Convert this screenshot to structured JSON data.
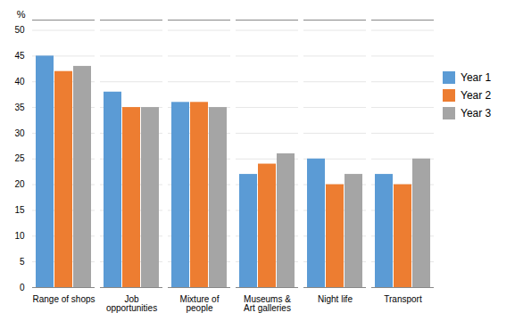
{
  "chart_data": {
    "type": "bar",
    "categories": [
      "Range of shops",
      "Job\nopportunities",
      "Mixture of\npeople",
      "Museums &\nArt galleries",
      "Night life",
      "Transport"
    ],
    "series": [
      {
        "name": "Year 1",
        "color": "#5B9BD5",
        "values": [
          45,
          38,
          36,
          22,
          25,
          22
        ]
      },
      {
        "name": "Year 2",
        "color": "#ED7D31",
        "values": [
          42,
          35,
          36,
          24,
          20,
          20
        ]
      },
      {
        "name": "Year 3",
        "color": "#A5A5A5",
        "values": [
          43,
          35,
          35,
          26,
          22,
          25
        ]
      }
    ],
    "ylabel": "%",
    "ylim": [
      0,
      52
    ],
    "yticks": [
      0,
      5,
      10,
      15,
      20,
      25,
      30,
      35,
      40,
      45,
      50
    ],
    "grid": true,
    "legend": "right"
  }
}
